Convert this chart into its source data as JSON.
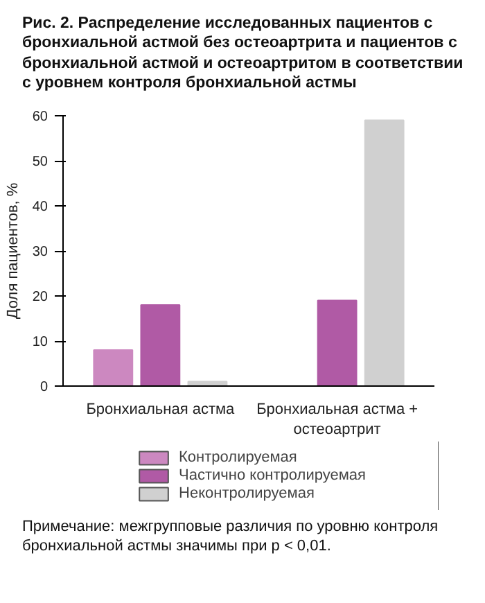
{
  "chart_data": {
    "type": "bar",
    "title": "Рис. 2. Распределение исследованных пациентов с бронхиальной астмой без остеоартрита и пациентов с бронхиальной астмой и остеоартритом в соответствии с уровнем контроля бронхиальной астмы",
    "ylabel": "Доля пациентов, %",
    "categories": [
      "Бронхиальная астма",
      "Бронхиальная астма + остеоартрит"
    ],
    "series": [
      {
        "name": "Контролируемая",
        "color": "#cc88c0",
        "values": [
          8,
          0
        ]
      },
      {
        "name": "Частично контролируемая",
        "color": "#b05aa5",
        "values": [
          18,
          19
        ]
      },
      {
        "name": "Неконтролируемая",
        "color": "#d0d0d0",
        "values": [
          1,
          59
        ]
      }
    ],
    "ylim": [
      0,
      60
    ],
    "yticks": [
      0,
      10,
      20,
      30,
      40,
      50,
      60
    ],
    "grid": false,
    "legend": "bottom",
    "annotations": [
      "Примечание: межгрупповые различия по уровню контроля бронхиальной астмы значимы при p < 0,01."
    ]
  }
}
